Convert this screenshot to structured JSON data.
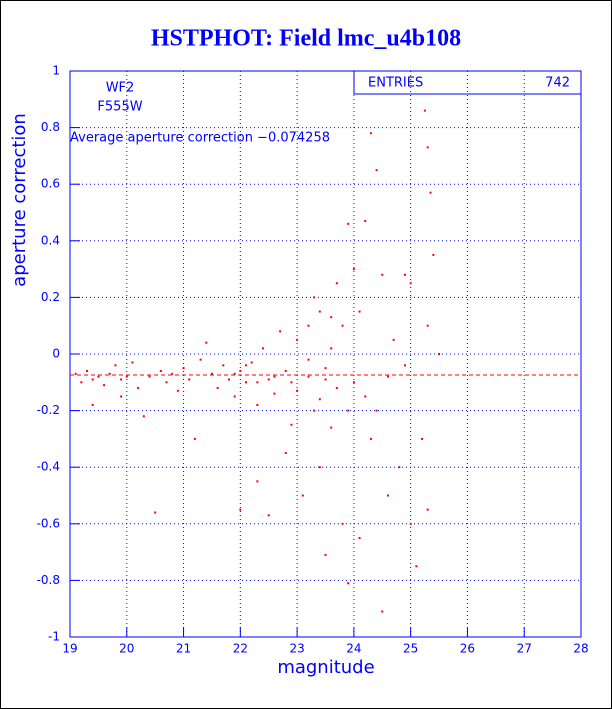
{
  "chart_data": {
    "type": "scatter",
    "title": "HSTPHOT: Field lmc_u4b108",
    "xlabel": "magnitude",
    "ylabel": "aperture correction",
    "annotations": [
      "WF2",
      "F555W",
      "Average aperture correction −0.074258"
    ],
    "stats": {
      "label": "ENTRIES",
      "value": 742
    },
    "hline": -0.074258,
    "color": "#ff0000",
    "grid": true,
    "xlim": [
      19,
      28
    ],
    "ylim": [
      -1,
      1
    ],
    "xticks": [
      19,
      20,
      21,
      22,
      23,
      24,
      25,
      26,
      27,
      28
    ],
    "yticks": [
      -1,
      -0.8,
      -0.6,
      -0.4,
      -0.2,
      0,
      0.2,
      0.4,
      0.6,
      0.8,
      1
    ],
    "x": [
      19.1,
      19.2,
      19.3,
      19.4,
      19.4,
      19.5,
      19.6,
      19.7,
      19.8,
      19.9,
      19.9,
      20.0,
      20.1,
      20.2,
      20.3,
      20.4,
      20.5,
      20.6,
      20.7,
      20.8,
      20.9,
      21.0,
      21.1,
      21.2,
      21.3,
      21.4,
      21.5,
      21.6,
      21.7,
      21.8,
      21.9,
      22.0,
      22.0,
      22.1,
      22.2,
      22.3,
      22.3,
      22.4,
      22.5,
      22.5,
      22.6,
      22.7,
      22.8,
      22.8,
      22.9,
      23.0,
      23.0,
      23.1,
      23.2,
      23.2,
      23.3,
      23.3,
      23.4,
      23.4,
      23.5,
      23.5,
      23.6,
      23.6,
      23.7,
      23.7,
      23.8,
      23.8,
      23.9,
      23.9,
      24.0,
      24.0,
      24.1,
      24.1,
      24.2,
      24.2,
      24.3,
      24.3,
      24.4,
      24.4,
      24.5,
      24.5,
      24.6,
      24.7,
      24.8,
      24.9,
      25.0,
      25.0,
      25.1,
      25.2,
      25.25,
      25.3,
      25.3,
      25.35,
      25.4,
      25.5,
      25.3,
      23.5,
      23.2,
      22.6,
      22.1,
      21.9,
      23.9,
      23.4,
      22.9,
      24.6,
      24.9,
      23.6,
      22.3
    ],
    "y": [
      -0.07,
      -0.1,
      -0.06,
      -0.09,
      -0.18,
      -0.08,
      -0.11,
      -0.07,
      -0.04,
      -0.09,
      -0.15,
      -0.08,
      -0.03,
      -0.12,
      -0.22,
      -0.08,
      -0.56,
      -0.06,
      -0.1,
      -0.07,
      -0.13,
      -0.05,
      -0.09,
      -0.3,
      -0.02,
      0.04,
      -0.07,
      -0.12,
      -0.04,
      -0.09,
      -0.15,
      -0.06,
      -0.55,
      -0.1,
      -0.03,
      -0.18,
      -0.45,
      0.02,
      -0.09,
      -0.57,
      -0.14,
      0.08,
      -0.06,
      -0.35,
      -0.1,
      0.05,
      -0.13,
      -0.5,
      0.1,
      -0.08,
      0.2,
      -0.2,
      0.15,
      -0.4,
      -0.05,
      -0.71,
      0.02,
      -0.26,
      0.25,
      -0.12,
      -0.6,
      0.1,
      -0.81,
      -0.2,
      0.3,
      -0.1,
      0.15,
      -0.65,
      0.47,
      -0.15,
      -0.3,
      0.78,
      0.65,
      -0.2,
      -0.91,
      0.28,
      -0.5,
      0.05,
      -0.4,
      0.28,
      0.25,
      -0.6,
      -0.75,
      -0.3,
      0.86,
      -0.55,
      0.73,
      0.57,
      0.35,
      0.0,
      0.1,
      -0.09,
      -0.02,
      -0.08,
      -0.04,
      -0.07,
      0.46,
      -0.16,
      -0.25,
      -0.08,
      -0.04,
      0.13,
      -0.1
    ]
  }
}
